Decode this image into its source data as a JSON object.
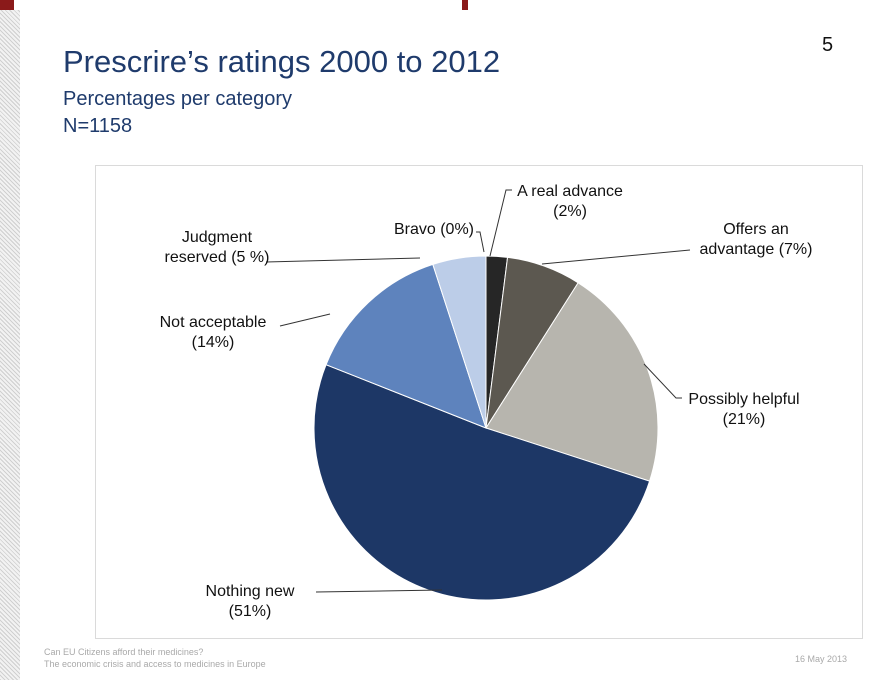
{
  "slide": {
    "number": "5",
    "title": "Prescrire’s ratings 2000 to 2012",
    "subtitle": "Percentages per category",
    "n_label": "N=1158"
  },
  "footer": {
    "line1": "Can EU Citizens afford their medicines?",
    "line2": "The economic crisis and access to medicines in Europe",
    "date": "16 May 2013"
  },
  "chart_data": {
    "type": "pie",
    "title": "Prescrire’s ratings 2000 to 2012",
    "subtitle": "Percentages per category",
    "slices": [
      {
        "name": "Bravo",
        "value": 0,
        "color": "#6b6b6b",
        "label_lines": [
          "Bravo (0%)"
        ]
      },
      {
        "name": "A real advance",
        "value": 2,
        "color": "#262626",
        "label_lines": [
          "A real advance",
          "(2%)"
        ]
      },
      {
        "name": "Offers an advantage",
        "value": 7,
        "color": "#5c5850",
        "label_lines": [
          "Offers an",
          "advantage (7%)"
        ]
      },
      {
        "name": "Possibly helpful",
        "value": 21,
        "color": "#b7b5ae",
        "label_lines": [
          "Possibly helpful",
          "(21%)"
        ]
      },
      {
        "name": "Nothing new",
        "value": 51,
        "color": "#1d3766",
        "label_lines": [
          "Nothing new",
          "(51%)"
        ]
      },
      {
        "name": "Not acceptable",
        "value": 14,
        "color": "#5e83bd",
        "label_lines": [
          "Not acceptable",
          "(14%)"
        ]
      },
      {
        "name": "Judgment reserved",
        "value": 5,
        "color": "#bccde8",
        "label_lines": [
          "Judgment",
          "reserved (5 %)"
        ]
      }
    ]
  }
}
